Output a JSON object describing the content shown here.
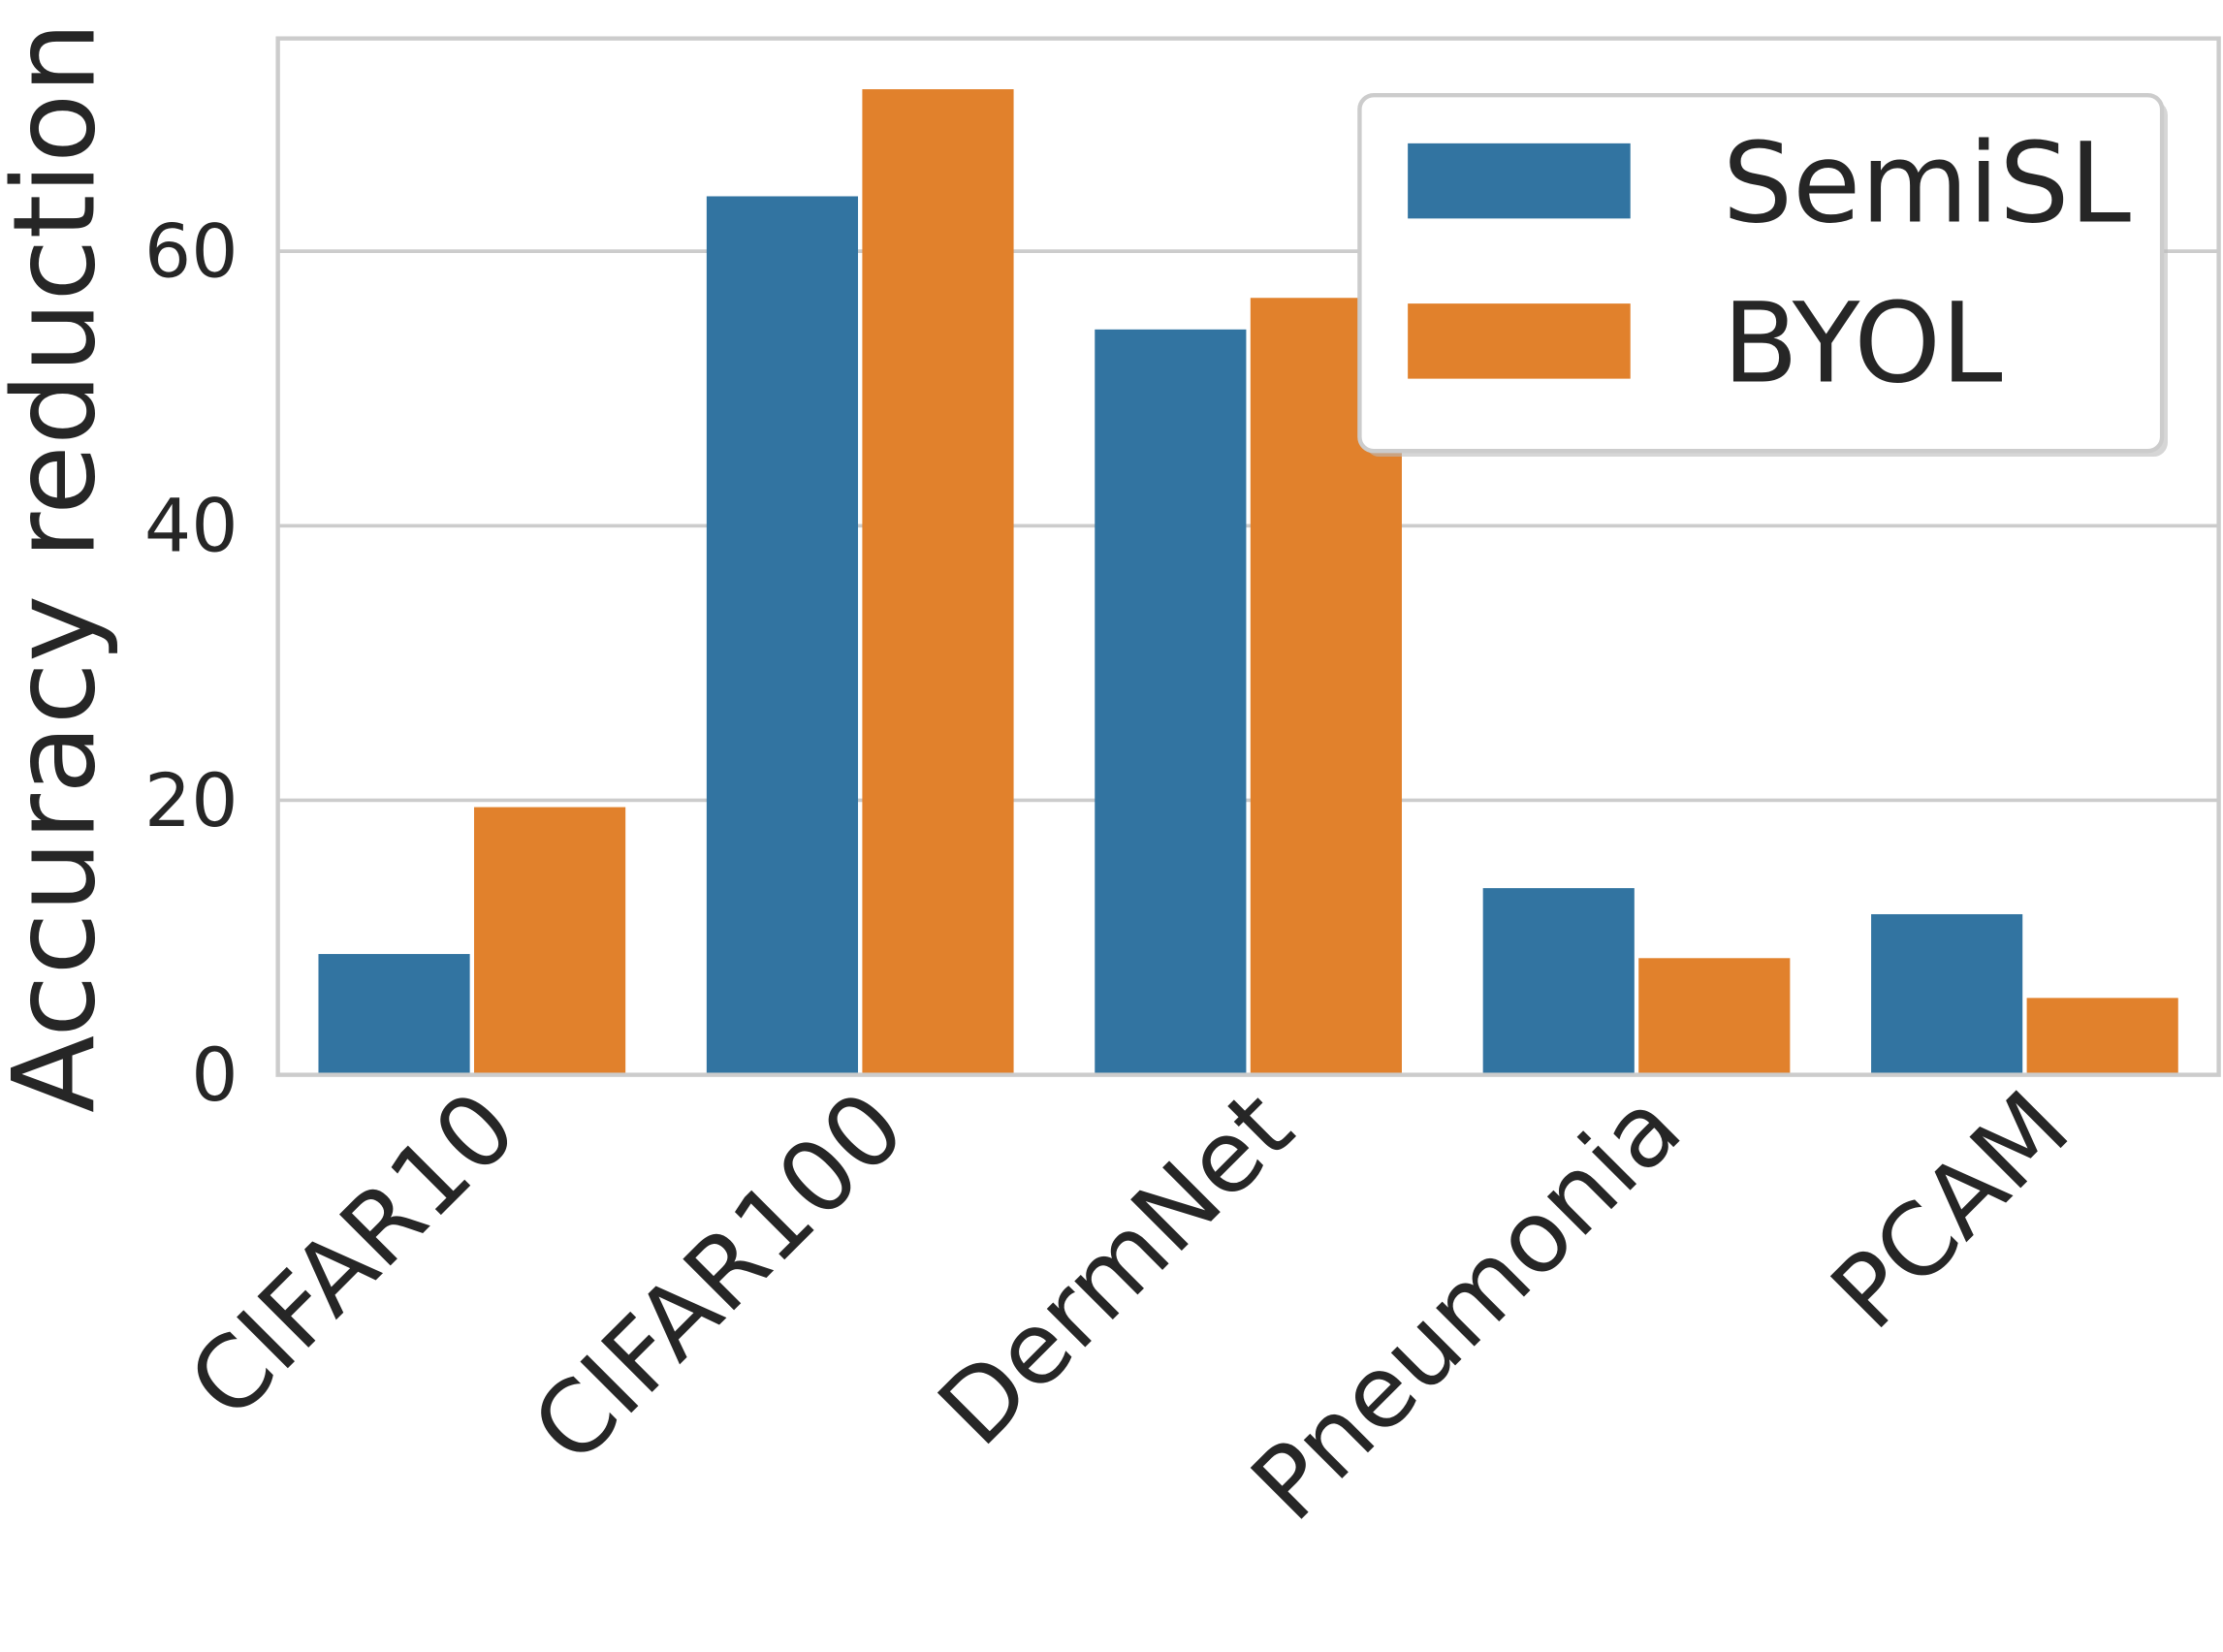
{
  "chart_data": {
    "type": "bar",
    "title": "",
    "xlabel": "",
    "ylabel": "Accuracy reduction",
    "categories": [
      "CIFAR10",
      "CIFAR100",
      "DermNet",
      "Pneumonia",
      "PCAM"
    ],
    "series": [
      {
        "name": "SemiSL",
        "color": "#3274a1",
        "values": [
          8.8,
          64.0,
          54.3,
          13.6,
          11.7
        ]
      },
      {
        "name": "BYOL",
        "color": "#e1812c",
        "values": [
          19.5,
          71.8,
          56.6,
          8.5,
          5.6
        ]
      }
    ],
    "ylim": [
      0,
      75.5
    ],
    "yticks": [
      0,
      20,
      40,
      60
    ],
    "grid": true,
    "legend": "top-right"
  }
}
